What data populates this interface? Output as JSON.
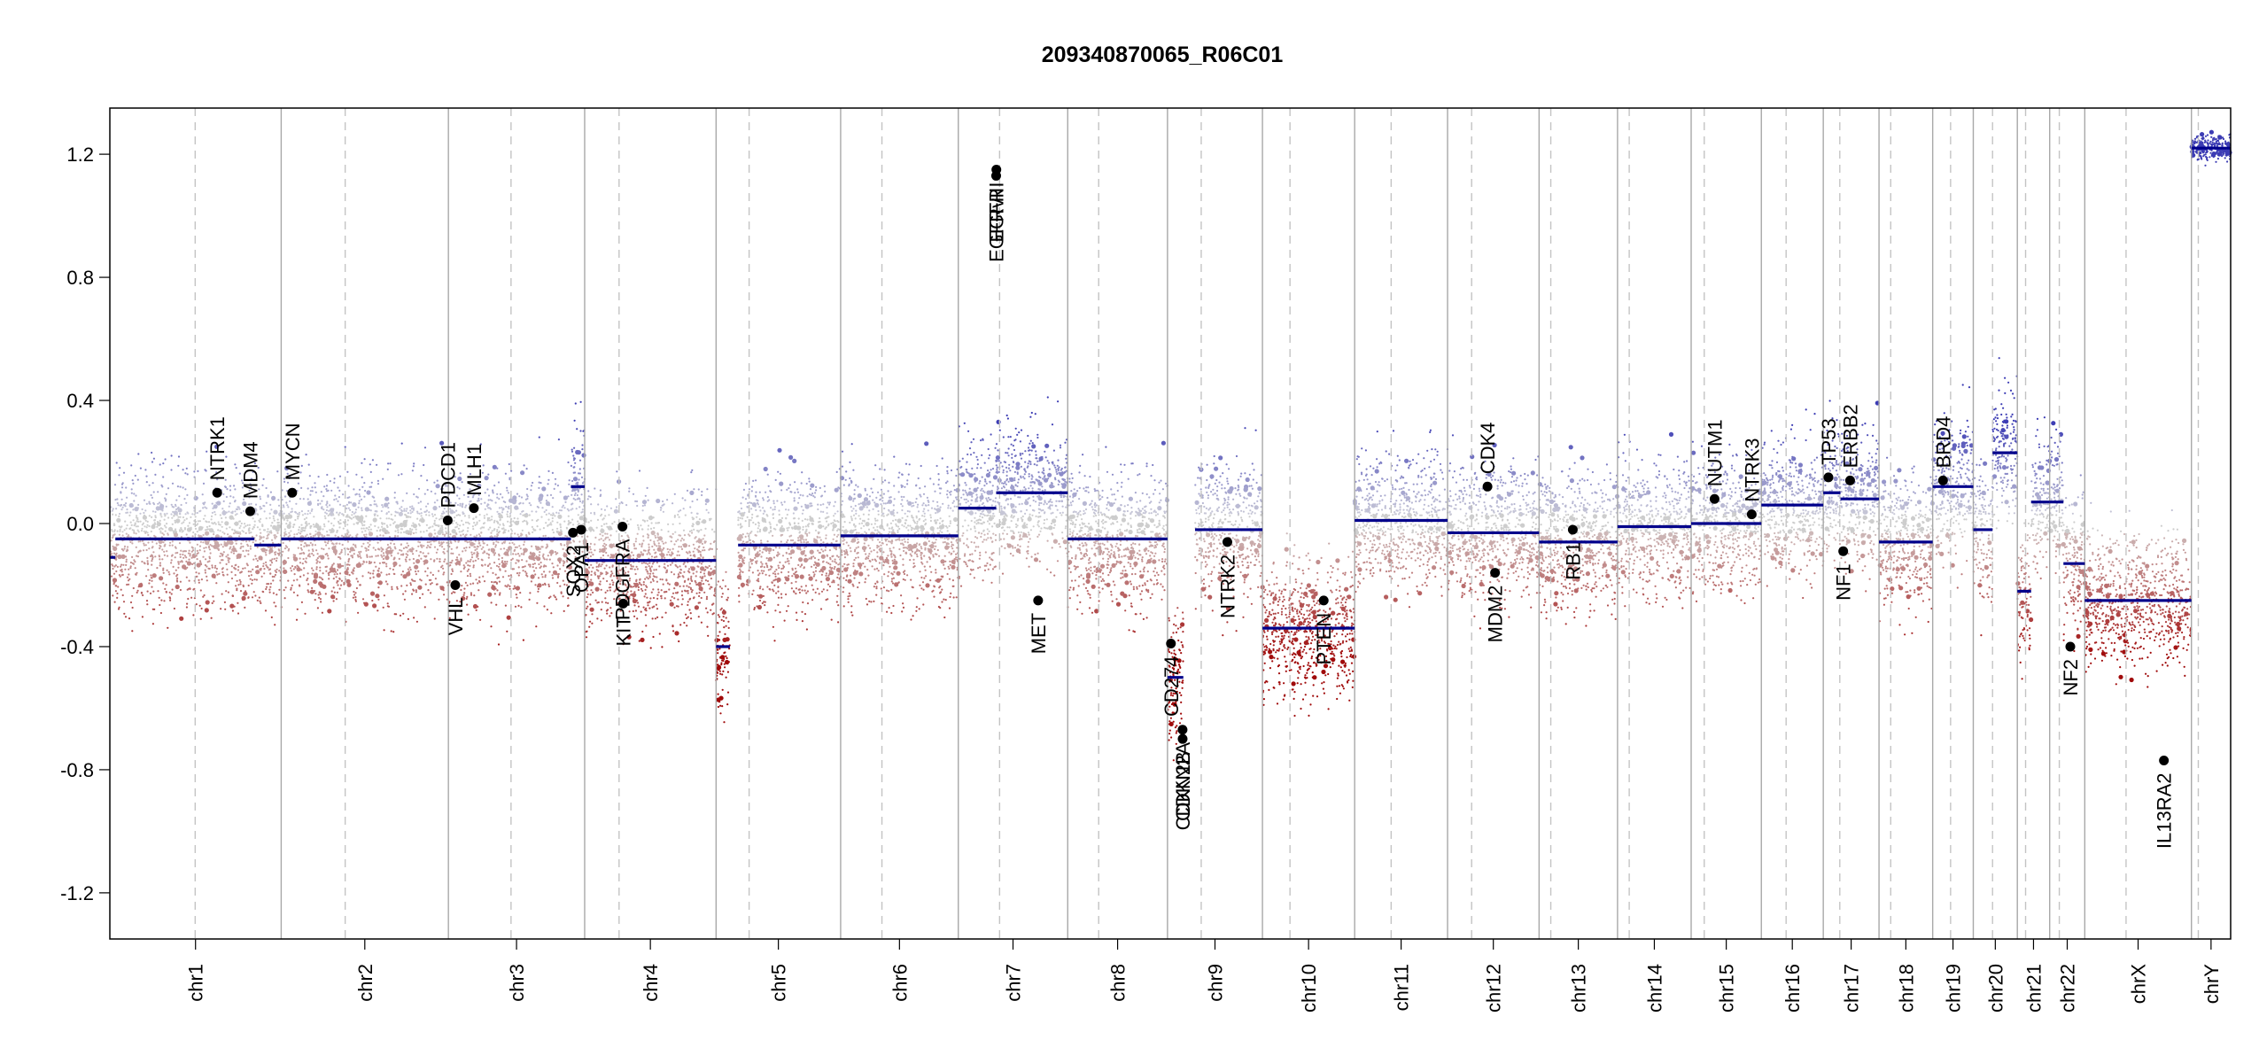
{
  "chart_data": {
    "type": "scatter",
    "title": "209340870065_R06C01",
    "ylim": [
      -1.35,
      1.35
    ],
    "yticks": [
      1.2,
      0.8,
      0.4,
      0.0,
      -0.4,
      -0.8,
      -1.2
    ],
    "ytick_labels": [
      "1.2",
      "0.8",
      "0.4",
      "0.0",
      "-0.4",
      "-0.8",
      "-1.2"
    ],
    "grid": false,
    "colors": {
      "gain": "#3333aa",
      "loss": "#aa0000",
      "neutral": "#bbbbbb",
      "segment": "#00008b",
      "gene_dot": "#000000"
    },
    "chromosomes": [
      {
        "name": "chr1",
        "length": 249,
        "centromere": 124
      },
      {
        "name": "chr2",
        "length": 243,
        "centromere": 93
      },
      {
        "name": "chr3",
        "length": 198,
        "centromere": 91
      },
      {
        "name": "chr4",
        "length": 191,
        "centromere": 50
      },
      {
        "name": "chr5",
        "length": 181,
        "centromere": 48
      },
      {
        "name": "chr6",
        "length": 171,
        "centromere": 60
      },
      {
        "name": "chr7",
        "length": 159,
        "centromere": 60
      },
      {
        "name": "chr8",
        "length": 145,
        "centromere": 45
      },
      {
        "name": "chr9",
        "length": 138,
        "centromere": 49
      },
      {
        "name": "chr10",
        "length": 134,
        "centromere": 40
      },
      {
        "name": "chr11",
        "length": 135,
        "centromere": 53
      },
      {
        "name": "chr12",
        "length": 133,
        "centromere": 35
      },
      {
        "name": "chr13",
        "length": 114,
        "centromere": 17
      },
      {
        "name": "chr14",
        "length": 107,
        "centromere": 17
      },
      {
        "name": "chr15",
        "length": 102,
        "centromere": 19
      },
      {
        "name": "chr16",
        "length": 90,
        "centromere": 36
      },
      {
        "name": "chr17",
        "length": 81,
        "centromere": 24
      },
      {
        "name": "chr18",
        "length": 78,
        "centromere": 17
      },
      {
        "name": "chr19",
        "length": 59,
        "centromere": 26
      },
      {
        "name": "chr20",
        "length": 64,
        "centromere": 28
      },
      {
        "name": "chr21",
        "length": 47,
        "centromere": 12
      },
      {
        "name": "chr22",
        "length": 51,
        "centromere": 14
      },
      {
        "name": "chrX",
        "length": 155,
        "centromere": 60
      },
      {
        "name": "chrY",
        "length": 57,
        "centromere": 10
      }
    ],
    "segments": [
      {
        "chr": "chr1",
        "start": 0,
        "end": 8,
        "value": -0.11
      },
      {
        "chr": "chr1",
        "start": 8,
        "end": 210,
        "value": -0.05
      },
      {
        "chr": "chr1",
        "start": 210,
        "end": 249,
        "value": -0.07
      },
      {
        "chr": "chr2",
        "start": 0,
        "end": 243,
        "value": -0.05
      },
      {
        "chr": "chr3",
        "start": 0,
        "end": 178,
        "value": -0.05
      },
      {
        "chr": "chr3",
        "start": 178,
        "end": 198,
        "value": 0.12
      },
      {
        "chr": "chr4",
        "start": 0,
        "end": 191,
        "value": -0.12
      },
      {
        "chr": "chr5",
        "start": 0,
        "end": 20,
        "value": -0.4
      },
      {
        "chr": "chr5",
        "start": 32,
        "end": 181,
        "value": -0.07
      },
      {
        "chr": "chr6",
        "start": 0,
        "end": 171,
        "value": -0.04
      },
      {
        "chr": "chr7",
        "start": 0,
        "end": 55,
        "value": 0.05
      },
      {
        "chr": "chr7",
        "start": 55,
        "end": 159,
        "value": 0.1
      },
      {
        "chr": "chr8",
        "start": 0,
        "end": 145,
        "value": -0.05
      },
      {
        "chr": "chr9",
        "start": 0,
        "end": 23,
        "value": -0.5
      },
      {
        "chr": "chr9",
        "start": 40,
        "end": 138,
        "value": -0.02
      },
      {
        "chr": "chr10",
        "start": 0,
        "end": 134,
        "value": -0.34
      },
      {
        "chr": "chr11",
        "start": 0,
        "end": 135,
        "value": 0.01
      },
      {
        "chr": "chr12",
        "start": 0,
        "end": 133,
        "value": -0.03
      },
      {
        "chr": "chr13",
        "start": 0,
        "end": 114,
        "value": -0.06
      },
      {
        "chr": "chr14",
        "start": 0,
        "end": 107,
        "value": -0.01
      },
      {
        "chr": "chr15",
        "start": 0,
        "end": 102,
        "value": 0.0
      },
      {
        "chr": "chr16",
        "start": 0,
        "end": 90,
        "value": 0.06
      },
      {
        "chr": "chr17",
        "start": 0,
        "end": 25,
        "value": 0.1
      },
      {
        "chr": "chr17",
        "start": 25,
        "end": 81,
        "value": 0.08
      },
      {
        "chr": "chr18",
        "start": 0,
        "end": 78,
        "value": -0.06
      },
      {
        "chr": "chr19",
        "start": 0,
        "end": 59,
        "value": 0.12
      },
      {
        "chr": "chr20",
        "start": 0,
        "end": 28,
        "value": -0.02
      },
      {
        "chr": "chr20",
        "start": 28,
        "end": 64,
        "value": 0.23
      },
      {
        "chr": "chr21",
        "start": 0,
        "end": 20,
        "value": -0.22
      },
      {
        "chr": "chr21",
        "start": 20,
        "end": 47,
        "value": 0.07
      },
      {
        "chr": "chr22",
        "start": 0,
        "end": 20,
        "value": 0.07
      },
      {
        "chr": "chr22",
        "start": 20,
        "end": 51,
        "value": -0.13
      },
      {
        "chr": "chrX",
        "start": 0,
        "end": 155,
        "value": -0.25
      },
      {
        "chr": "chrY",
        "start": 0,
        "end": 57,
        "value": 1.22
      }
    ],
    "genes": [
      {
        "name": "NTRK1",
        "chr": "chr1",
        "pos": 156,
        "value": 0.1,
        "label_side": "above"
      },
      {
        "name": "MDM4",
        "chr": "chr1",
        "pos": 204,
        "value": 0.04,
        "label_side": "above"
      },
      {
        "name": "MYCN",
        "chr": "chr2",
        "pos": 16,
        "value": 0.1,
        "label_side": "above"
      },
      {
        "name": "PDCD1",
        "chr": "chr2",
        "pos": 242,
        "value": 0.01,
        "label_side": "above"
      },
      {
        "name": "VHL",
        "chr": "chr3",
        "pos": 10,
        "value": -0.2,
        "label_side": "below"
      },
      {
        "name": "MLH1",
        "chr": "chr3",
        "pos": 37,
        "value": 0.05,
        "label_side": "above"
      },
      {
        "name": "SOX2",
        "chr": "chr3",
        "pos": 181,
        "value": -0.03,
        "label_side": "below"
      },
      {
        "name": "OPA1",
        "chr": "chr3",
        "pos": 193,
        "value": -0.02,
        "label_side": "below"
      },
      {
        "name": "PDGFRA",
        "chr": "chr4",
        "pos": 55,
        "value": -0.01,
        "label_side": "below"
      },
      {
        "name": "KIT",
        "chr": "chr4",
        "pos": 56,
        "value": -0.26,
        "label_side": "below"
      },
      {
        "name": "EGFR",
        "chr": "chr7",
        "pos": 55,
        "value": 1.13,
        "label_side": "below"
      },
      {
        "name": "EGFRvIII",
        "chr": "chr7",
        "pos": 55.3,
        "value": 1.15,
        "label_side": "below"
      },
      {
        "name": "MET",
        "chr": "chr7",
        "pos": 116,
        "value": -0.25,
        "label_side": "below"
      },
      {
        "name": "CD274",
        "chr": "chr9",
        "pos": 5,
        "value": -0.39,
        "label_side": "below"
      },
      {
        "name": "CDKN2A",
        "chr": "chr9",
        "pos": 21.9,
        "value": -0.67,
        "label_side": "below"
      },
      {
        "name": "CDKN2B",
        "chr": "chr9",
        "pos": 22,
        "value": -0.7,
        "label_side": "below"
      },
      {
        "name": "NTRK2",
        "chr": "chr9",
        "pos": 87,
        "value": -0.06,
        "label_side": "below"
      },
      {
        "name": "PTEN",
        "chr": "chr10",
        "pos": 89,
        "value": -0.25,
        "label_side": "below"
      },
      {
        "name": "CDK4",
        "chr": "chr12",
        "pos": 58,
        "value": 0.12,
        "label_side": "above"
      },
      {
        "name": "MDM2",
        "chr": "chr12",
        "pos": 69,
        "value": -0.16,
        "label_side": "below"
      },
      {
        "name": "RB1",
        "chr": "chr13",
        "pos": 49,
        "value": -0.02,
        "label_side": "below"
      },
      {
        "name": "NUTM1",
        "chr": "chr15",
        "pos": 34,
        "value": 0.08,
        "label_side": "above"
      },
      {
        "name": "NTRK3",
        "chr": "chr15",
        "pos": 88,
        "value": 0.03,
        "label_side": "above"
      },
      {
        "name": "TP53",
        "chr": "chr17",
        "pos": 7.5,
        "value": 0.15,
        "label_side": "above"
      },
      {
        "name": "NF1",
        "chr": "chr17",
        "pos": 29,
        "value": -0.09,
        "label_side": "below"
      },
      {
        "name": "ERBB2",
        "chr": "chr17",
        "pos": 39,
        "value": 0.14,
        "label_side": "above"
      },
      {
        "name": "BRD4",
        "chr": "chr19",
        "pos": 15,
        "value": 0.14,
        "label_side": "above"
      },
      {
        "name": "NF2",
        "chr": "chr22",
        "pos": 30,
        "value": -0.4,
        "label_side": "below"
      },
      {
        "name": "IL13RA2",
        "chr": "chrX",
        "pos": 115,
        "value": -0.77,
        "label_side": "below"
      }
    ]
  }
}
